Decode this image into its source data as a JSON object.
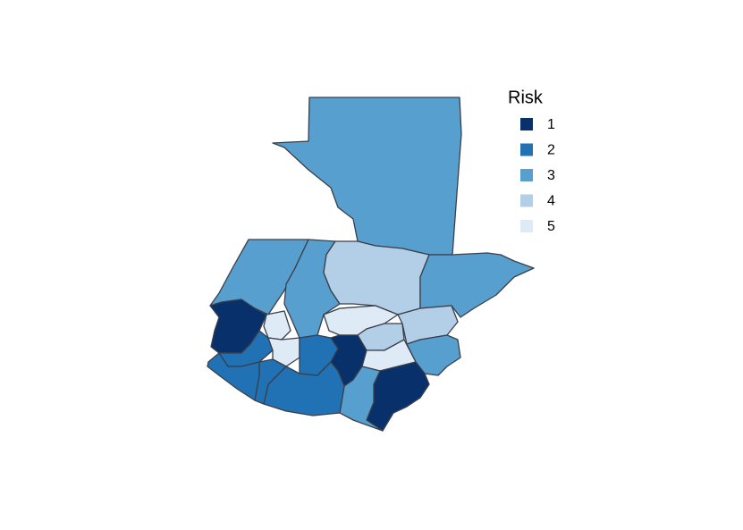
{
  "legend": {
    "title": "Risk",
    "items": [
      {
        "label": "1",
        "color": "#08306b"
      },
      {
        "label": "2",
        "color": "#2171b5"
      },
      {
        "label": "3",
        "color": "#579fce"
      },
      {
        "label": "4",
        "color": "#b3cfe8"
      },
      {
        "label": "5",
        "color": "#deebf7"
      }
    ]
  },
  "region_risk": [
    3,
    3,
    3,
    4,
    3,
    5,
    4,
    4,
    3,
    1,
    5,
    2,
    5,
    2,
    1,
    5,
    1,
    3,
    2,
    2,
    2
  ]
}
